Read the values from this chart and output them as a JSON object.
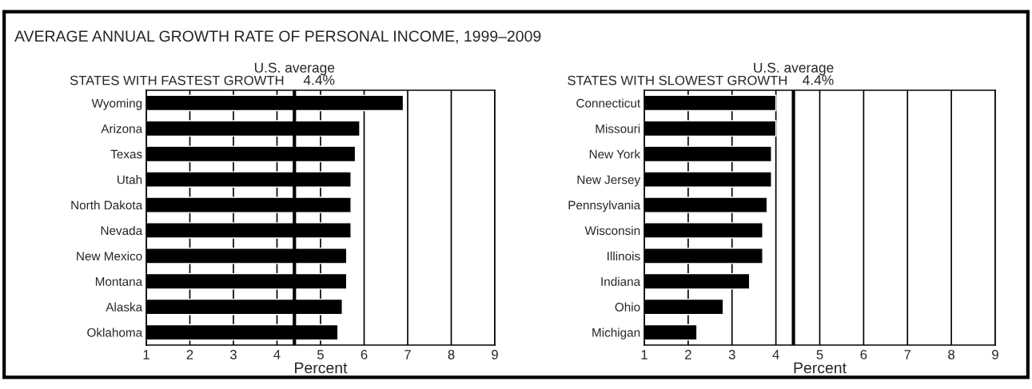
{
  "chart_data": [
    {
      "type": "bar",
      "orientation": "horizontal",
      "title": "STATES WITH FASTEST GROWTH",
      "xlabel": "Percent",
      "annotations": [
        "AVERAGE ANNUAL GROWTH RATE OF PERSONAL INCOME, 1999–2009"
      ],
      "categories": [
        "Wyoming",
        "Arizona",
        "Texas",
        "Utah",
        "North Dakota",
        "Nevada",
        "New Mexico",
        "Montana",
        "Alaska",
        "Oklahoma"
      ],
      "values": [
        6.9,
        5.9,
        5.8,
        5.7,
        5.7,
        5.7,
        5.6,
        5.6,
        5.5,
        5.4
      ],
      "color": "#000000",
      "xlim": [
        1,
        9
      ],
      "xticks": [
        1,
        2,
        3,
        4,
        5,
        6,
        7,
        8,
        9
      ],
      "grid": "x",
      "ref_lines": [
        {
          "axis": "x",
          "value": 4.4,
          "label": "U.S. average\n4.4%",
          "color": "#000000"
        }
      ]
    },
    {
      "type": "bar",
      "orientation": "horizontal",
      "title": "STATES WITH SLOWEST GROWTH",
      "xlabel": "Percent",
      "categories": [
        "Connecticut",
        "Missouri",
        "New York",
        "New Jersey",
        "Pennsylvania",
        "Wisconsin",
        "Illinois",
        "Indiana",
        "Ohio",
        "Michigan"
      ],
      "values": [
        4.0,
        4.0,
        3.9,
        3.9,
        3.8,
        3.7,
        3.7,
        3.4,
        2.8,
        2.2
      ],
      "color": "#000000",
      "xlim": [
        1,
        9
      ],
      "xticks": [
        1,
        2,
        3,
        4,
        5,
        6,
        7,
        8,
        9
      ],
      "grid": "x",
      "ref_lines": [
        {
          "axis": "x",
          "value": 4.4,
          "label": "U.S. average\n4.4%",
          "color": "#000000"
        }
      ]
    }
  ]
}
